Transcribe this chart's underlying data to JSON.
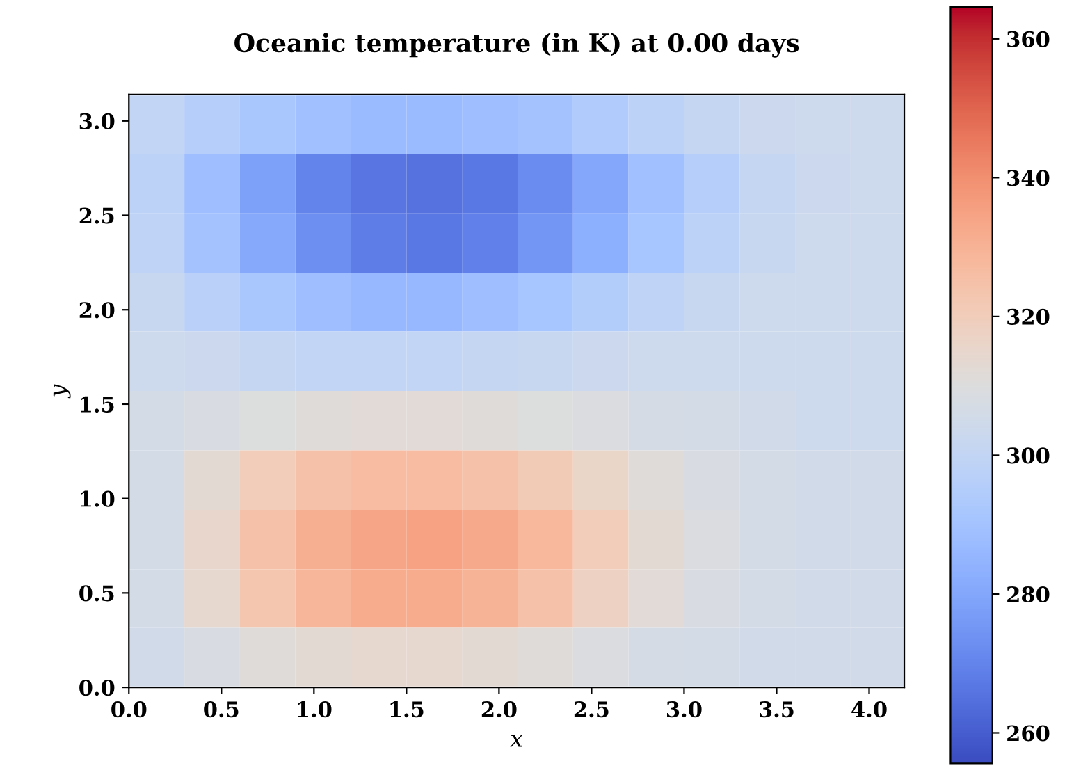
{
  "chart_data": {
    "type": "heatmap",
    "title": "Oceanic temperature (in K) at 0.00 days",
    "xlabel": "x",
    "ylabel": "y",
    "x": [
      0.15,
      0.45,
      0.75,
      1.05,
      1.35,
      1.65,
      1.95,
      2.25,
      2.55,
      2.85,
      3.15,
      3.45,
      3.75,
      4.05
    ],
    "y": [
      2.98,
      2.67,
      2.35,
      2.04,
      1.73,
      1.41,
      1.1,
      0.78,
      0.47,
      0.16
    ],
    "cells": [
      [
        300,
        296,
        292,
        289,
        287,
        287,
        288,
        290,
        294,
        298,
        301,
        303,
        304,
        304
      ],
      [
        298,
        288,
        278,
        270,
        266,
        265,
        267,
        272,
        280,
        289,
        296,
        301,
        303,
        304
      ],
      [
        299,
        290,
        281,
        273,
        268,
        267,
        269,
        275,
        283,
        291,
        298,
        302,
        304,
        304
      ],
      [
        302,
        297,
        292,
        288,
        286,
        286,
        288,
        291,
        295,
        299,
        302,
        304,
        304,
        304
      ],
      [
        304,
        303,
        301,
        300,
        300,
        300,
        301,
        302,
        303,
        304,
        304,
        304,
        304,
        304
      ],
      [
        306,
        308,
        310,
        311,
        312,
        312,
        311,
        310,
        309,
        307,
        306,
        305,
        304,
        304
      ],
      [
        306,
        313,
        320,
        325,
        327,
        327,
        325,
        321,
        316,
        311,
        308,
        306,
        305,
        305
      ],
      [
        306,
        315,
        325,
        331,
        334,
        335,
        333,
        328,
        320,
        313,
        309,
        306,
        305,
        305
      ],
      [
        306,
        314,
        323,
        329,
        332,
        332,
        330,
        325,
        318,
        312,
        308,
        306,
        305,
        305
      ],
      [
        305,
        308,
        311,
        313,
        314,
        314,
        313,
        311,
        309,
        307,
        306,
        305,
        305,
        305
      ]
    ],
    "xlim": [
      0,
      4.19
    ],
    "ylim": [
      0,
      3.14
    ],
    "xticks": [
      {
        "value": 0,
        "label": "0.0"
      },
      0.5,
      {
        "value": 1,
        "label": "1.0"
      },
      1.5,
      {
        "value": 2,
        "label": "2.0"
      },
      2.5,
      {
        "value": 3,
        "label": "3.0"
      },
      3.5,
      {
        "value": 4,
        "label": "4.0"
      }
    ],
    "yticks": [
      {
        "value": 0,
        "label": "0.0"
      },
      0.5,
      {
        "value": 1,
        "label": "1.0"
      },
      1.5,
      {
        "value": 2,
        "label": "2.0"
      },
      2.5,
      {
        "value": 3,
        "label": "3.0"
      }
    ],
    "clim": [
      255.6,
      364.6
    ],
    "cticks": [
      260,
      280,
      300,
      320,
      340,
      360
    ]
  }
}
